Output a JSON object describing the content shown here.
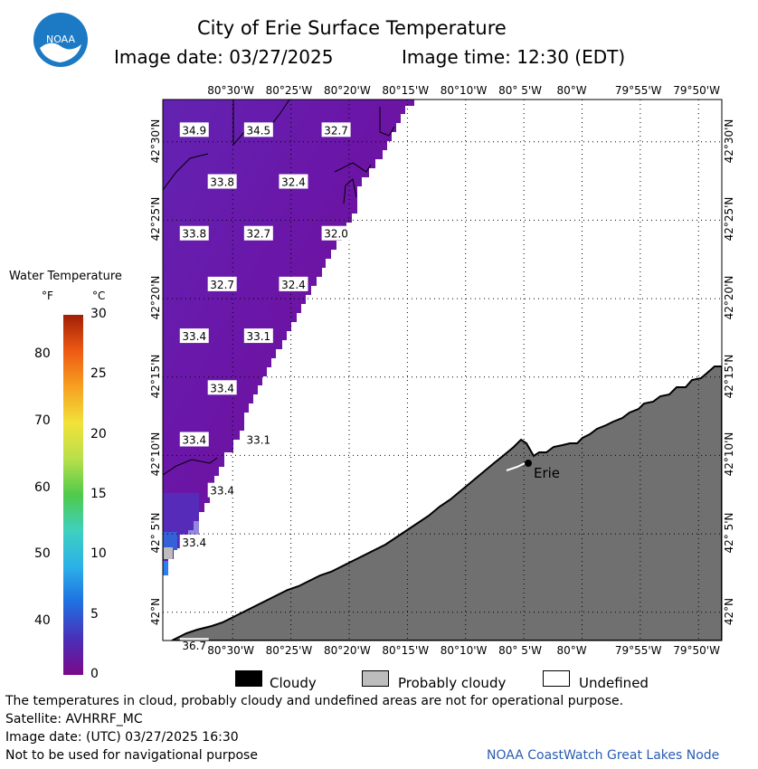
{
  "header": {
    "title": "City of Erie Surface Temperature",
    "image_date": "Image date: 03/27/2025",
    "image_time": "Image time: 12:30 (EDT)"
  },
  "logo": {
    "text": "NOAA"
  },
  "map": {
    "lon_labels": [
      "80°30'W",
      "80°25'W",
      "80°20'W",
      "80°15'W",
      "80°10'W",
      "80° 5'W",
      "80°W",
      "79°55'W",
      "79°50'W"
    ],
    "lat_labels": [
      "42°30'N",
      "42°25'N",
      "42°20'N",
      "42°15'N",
      "42°10'N",
      "42° 5'N",
      "42°N"
    ],
    "city": "Erie",
    "temps": [
      {
        "v": "34.9",
        "lon": -80.555,
        "lat": 42.512
      },
      {
        "v": "34.5",
        "lon": -80.463,
        "lat": 42.512
      },
      {
        "v": "32.7",
        "lon": -80.352,
        "lat": 42.512
      },
      {
        "v": "33.8",
        "lon": -80.515,
        "lat": 42.457
      },
      {
        "v": "32.4",
        "lon": -80.413,
        "lat": 42.457
      },
      {
        "v": "33.8",
        "lon": -80.555,
        "lat": 42.402
      },
      {
        "v": "32.7",
        "lon": -80.463,
        "lat": 42.402
      },
      {
        "v": "32.0",
        "lon": -80.352,
        "lat": 42.402
      },
      {
        "v": "32.7",
        "lon": -80.515,
        "lat": 42.348
      },
      {
        "v": "32.4",
        "lon": -80.413,
        "lat": 42.348
      },
      {
        "v": "33.4",
        "lon": -80.555,
        "lat": 42.293
      },
      {
        "v": "33.1",
        "lon": -80.463,
        "lat": 42.293
      },
      {
        "v": "33.4",
        "lon": -80.515,
        "lat": 42.238
      },
      {
        "v": "33.4",
        "lon": -80.555,
        "lat": 42.183
      },
      {
        "v": "33.1",
        "lon": -80.463,
        "lat": 42.183
      },
      {
        "v": "33.4",
        "lon": -80.515,
        "lat": 42.129
      },
      {
        "v": "33.4",
        "lon": -80.555,
        "lat": 42.074
      },
      {
        "v": "36.7",
        "lon": -80.555,
        "lat": 41.964
      }
    ]
  },
  "colorbar": {
    "title": "Water Temperature",
    "unit_f": "°F",
    "unit_c": "°C",
    "f_ticks": [
      "80",
      "70",
      "60",
      "50",
      "40"
    ],
    "c_ticks": [
      "30",
      "25",
      "20",
      "15",
      "10",
      "5",
      "0"
    ],
    "colors": [
      "#7a0a8a",
      "#4a2fb8",
      "#1f6fe0",
      "#2bb0e8",
      "#3fd0c0",
      "#4fca4a",
      "#b8e04a",
      "#f2e23a",
      "#f6a021",
      "#ee5a14",
      "#a11f05"
    ]
  },
  "legend": {
    "cloudy": "Cloudy",
    "probably_cloudy": "Probably cloudy",
    "undefined": "Undefined",
    "colors": {
      "cloudy": "#000000",
      "probably_cloudy": "#bdbdbd",
      "undefined": "#ffffff"
    }
  },
  "notes": {
    "line1": "The temperatures in cloud, probably cloudy and undefined areas are not for operational purpose.",
    "line2": "Satellite: AVHRRF_MC",
    "line3": "Image date: (UTC) 03/27/2025  16:30",
    "line4": "Not to be used for navigational purpose",
    "credit": "NOAA CoastWatch Great Lakes Node"
  },
  "land_color": "#707070"
}
